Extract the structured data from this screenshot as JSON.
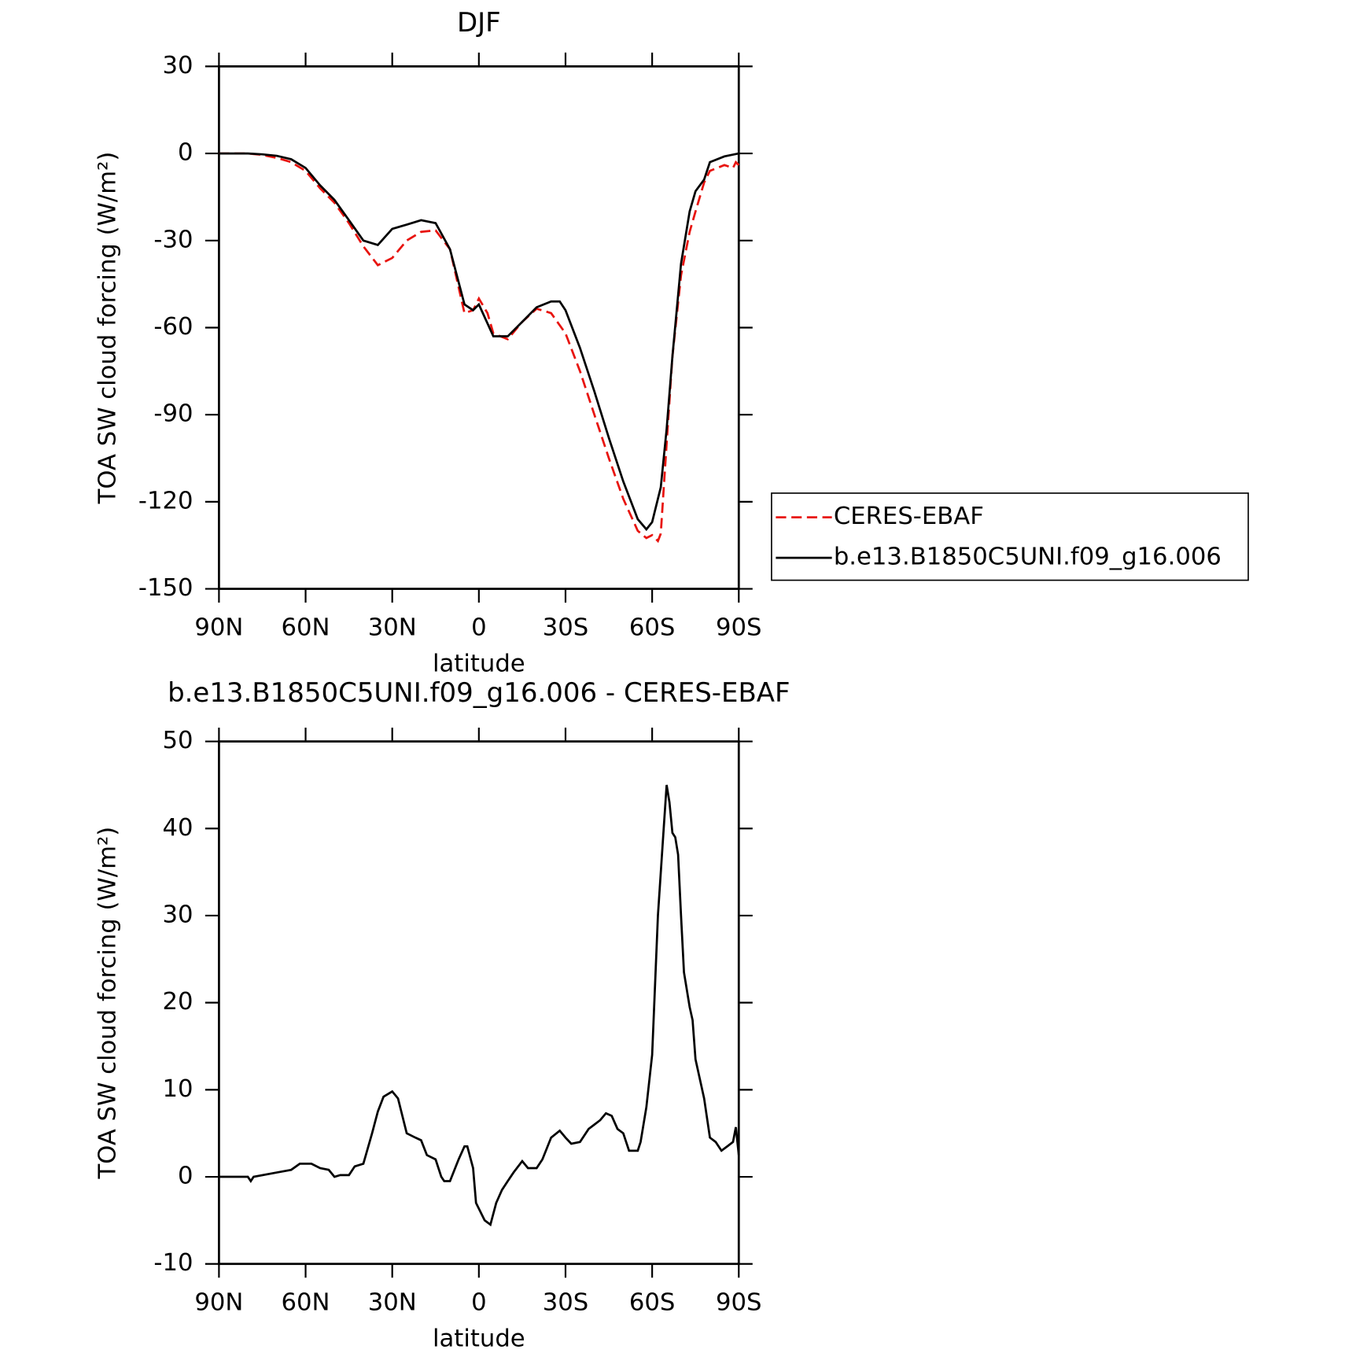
{
  "chart_data": [
    {
      "type": "line",
      "title": "DJF",
      "xlabel": "latitude",
      "ylabel": "TOA SW cloud forcing (W/m²)",
      "xlim": [
        90,
        -90
      ],
      "xticks": [
        {
          "value": 90,
          "label": "90N"
        },
        {
          "value": 60,
          "label": "60N"
        },
        {
          "value": 30,
          "label": "30N"
        },
        0,
        {
          "value": -30,
          "label": "30S"
        },
        {
          "value": -60,
          "label": "60S"
        },
        {
          "value": -90,
          "label": "90S"
        }
      ],
      "ylim": [
        -150,
        30
      ],
      "yticks": [
        -150,
        -120,
        -90,
        -60,
        -30,
        0,
        30
      ],
      "legend": "right",
      "series": [
        {
          "name": "CERES-EBAF",
          "color": "#e8140f",
          "line_style": "dashed",
          "x": [
            90,
            80,
            75,
            70,
            65,
            60,
            55,
            50,
            45,
            40,
            35,
            30,
            25,
            20,
            15,
            10,
            5,
            2,
            0,
            -3,
            -5,
            -10,
            -15,
            -20,
            -25,
            -30,
            -35,
            -40,
            -45,
            -50,
            -55,
            -58,
            -60,
            -62,
            -63,
            -65,
            -67,
            -70,
            -73,
            -75,
            -78,
            -80,
            -85,
            -88,
            -89,
            -90
          ],
          "values": [
            0,
            0,
            -0.5,
            -1.5,
            -3,
            -6,
            -12,
            -17,
            -24,
            -32,
            -38.5,
            -36,
            -30,
            -27,
            -26.5,
            -33,
            -55,
            -54,
            -50,
            -55,
            -62,
            -64,
            -58,
            -53.5,
            -55,
            -62,
            -75,
            -90,
            -105,
            -119,
            -130,
            -132.5,
            -131.5,
            -133.5,
            -131,
            -100,
            -70,
            -42,
            -27,
            -20,
            -10,
            -6,
            -4,
            -5,
            -3,
            -4
          ]
        },
        {
          "name": "b.e13.B1850C5UNI.f09_g16.006",
          "color": "#000000",
          "line_style": "solid",
          "x": [
            90,
            85,
            80,
            75,
            70,
            65,
            60,
            55,
            50,
            45,
            40,
            35,
            30,
            25,
            20,
            15,
            10,
            5,
            2,
            0,
            -5,
            -10,
            -15,
            -20,
            -25,
            -28,
            -30,
            -35,
            -40,
            -45,
            -50,
            -55,
            -58,
            -60,
            -63,
            -65,
            -67,
            -70,
            -73,
            -75,
            -78,
            -80,
            -85,
            -90
          ],
          "values": [
            0,
            0,
            0,
            -0.3,
            -0.8,
            -2,
            -5,
            -11,
            -16,
            -23,
            -30,
            -31.5,
            -26,
            -24.5,
            -23,
            -24,
            -33,
            -52,
            -54,
            -52,
            -63,
            -63,
            -58,
            -53,
            -51,
            -51,
            -54,
            -67,
            -82,
            -98,
            -113,
            -126,
            -129.5,
            -127,
            -115,
            -95,
            -70,
            -38,
            -20,
            -13,
            -9,
            -3,
            -1,
            0
          ]
        }
      ]
    },
    {
      "type": "line",
      "title": "b.e13.B1850C5UNI.f09_g16.006 - CERES-EBAF",
      "xlabel": "latitude",
      "ylabel": "TOA SW cloud forcing (W/m²)",
      "xlim": [
        90,
        -90
      ],
      "xticks": [
        {
          "value": 90,
          "label": "90N"
        },
        {
          "value": 60,
          "label": "60N"
        },
        {
          "value": 30,
          "label": "30N"
        },
        0,
        {
          "value": -30,
          "label": "30S"
        },
        {
          "value": -60,
          "label": "60S"
        },
        {
          "value": -90,
          "label": "90S"
        }
      ],
      "ylim": [
        -10,
        50
      ],
      "yticks": [
        -10,
        0,
        10,
        20,
        30,
        40,
        50
      ],
      "series": [
        {
          "color": "#000000",
          "line_style": "solid",
          "x": [
            90,
            80,
            79,
            78,
            70,
            65,
            62,
            58,
            55,
            52,
            50,
            48,
            45,
            43,
            40,
            37,
            35,
            33,
            30,
            28,
            25,
            22,
            20,
            18,
            15,
            13,
            12,
            10,
            7,
            5,
            4,
            2,
            1,
            -2,
            -4,
            -6,
            -8,
            -10,
            -12,
            -15,
            -17,
            -20,
            -22,
            -25,
            -28,
            -30,
            -32,
            -35,
            -38,
            -40,
            -42,
            -44,
            -46,
            -48,
            -50,
            -52,
            -55,
            -56,
            -58,
            -60,
            -62,
            -64,
            -65,
            -66,
            -67,
            -68,
            -69,
            -70,
            -71,
            -73,
            -74,
            -75,
            -78,
            -80,
            -82,
            -84,
            -86,
            -88,
            -89,
            -90
          ],
          "values": [
            0,
            0,
            -0.5,
            0,
            0.5,
            0.8,
            1.5,
            1.5,
            1,
            0.8,
            0,
            0.2,
            0.2,
            1.2,
            1.5,
            5,
            7.5,
            9.2,
            9.8,
            9,
            5,
            4.5,
            4.2,
            2.5,
            2,
            0,
            -0.5,
            -0.5,
            2,
            3.5,
            3.5,
            1,
            -3,
            -5,
            -5.5,
            -3,
            -1.5,
            -0.5,
            0.5,
            1.8,
            1,
            1,
            2,
            4.5,
            5.3,
            4.5,
            3.8,
            4,
            5.5,
            6,
            6.5,
            7.3,
            7,
            5.5,
            5,
            3,
            3,
            4,
            8,
            14,
            30,
            40,
            45,
            43,
            39.5,
            39,
            37,
            30,
            23.5,
            19.5,
            18,
            13.5,
            9,
            4.5,
            4,
            3,
            3.5,
            4,
            5.7,
            2.5
          ]
        }
      ]
    }
  ]
}
